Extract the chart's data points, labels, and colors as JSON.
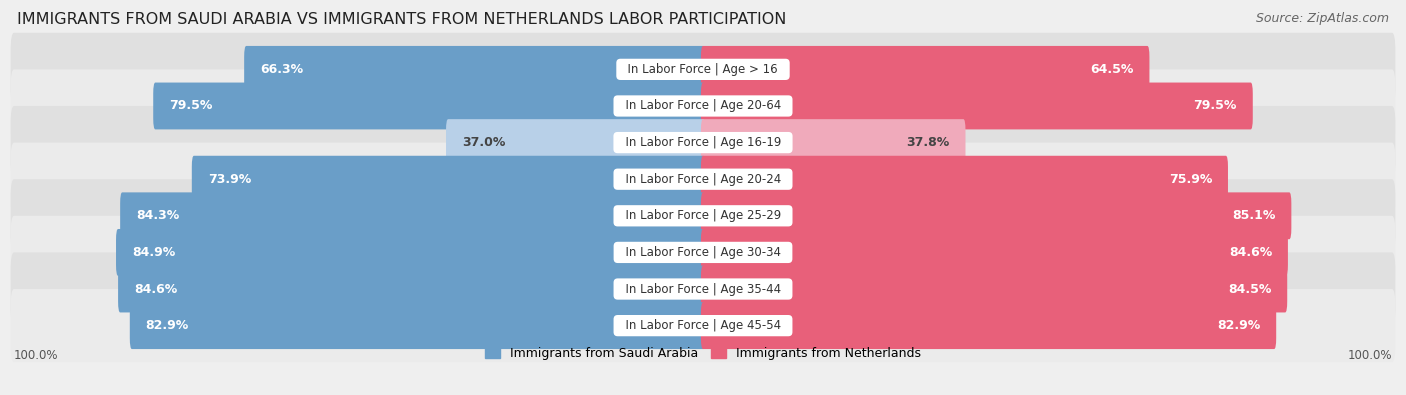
{
  "title": "IMMIGRANTS FROM SAUDI ARABIA VS IMMIGRANTS FROM NETHERLANDS LABOR PARTICIPATION",
  "source": "Source: ZipAtlas.com",
  "categories": [
    "In Labor Force | Age > 16",
    "In Labor Force | Age 20-64",
    "In Labor Force | Age 16-19",
    "In Labor Force | Age 20-24",
    "In Labor Force | Age 25-29",
    "In Labor Force | Age 30-34",
    "In Labor Force | Age 35-44",
    "In Labor Force | Age 45-54"
  ],
  "saudi_values": [
    66.3,
    79.5,
    37.0,
    73.9,
    84.3,
    84.9,
    84.6,
    82.9
  ],
  "netherlands_values": [
    64.5,
    79.5,
    37.8,
    75.9,
    85.1,
    84.6,
    84.5,
    82.9
  ],
  "saudi_color_dark": "#6A9EC8",
  "saudi_color_light": "#B8D0E8",
  "netherlands_color_dark": "#E8607A",
  "netherlands_color_light": "#F0AABB",
  "row_color_dark": "#E0E0E0",
  "row_color_light": "#EBEBEB",
  "bg_color": "#EFEFEF",
  "legend_saudi": "Immigrants from Saudi Arabia",
  "legend_netherlands": "Immigrants from Netherlands",
  "title_fontsize": 11.5,
  "source_fontsize": 9,
  "bar_label_fontsize": 9,
  "category_fontsize": 8.5,
  "legend_fontsize": 9,
  "axis_label_fontsize": 8.5,
  "threshold_light": 50
}
